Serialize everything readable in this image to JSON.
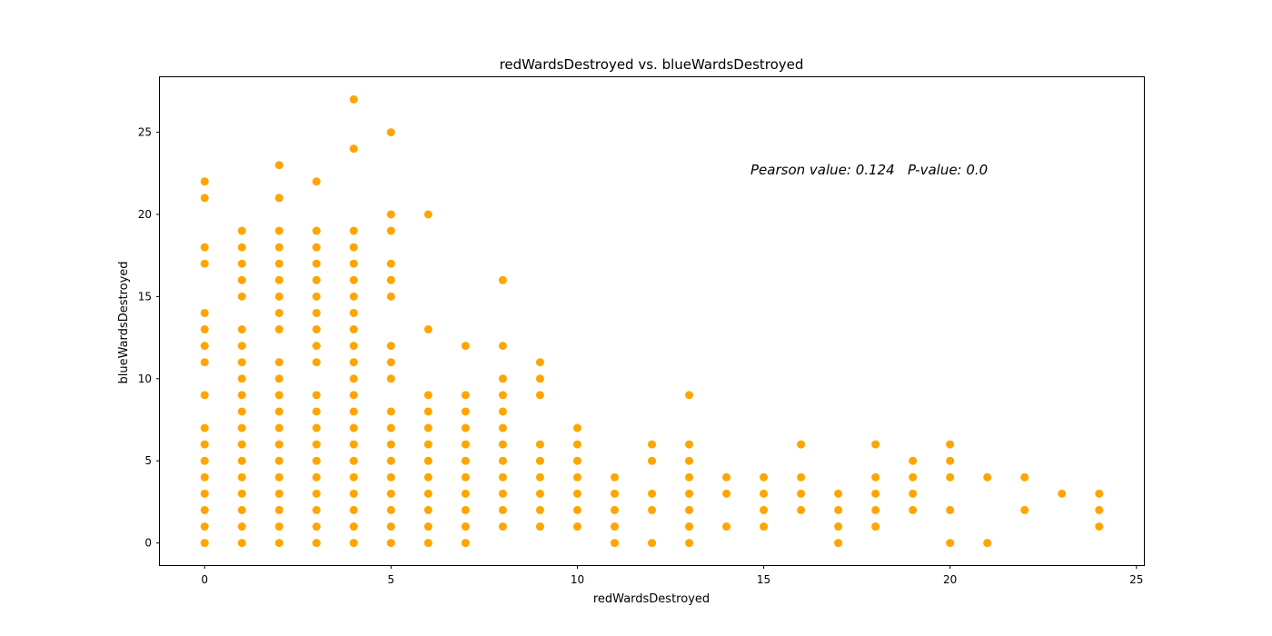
{
  "chart_data": {
    "type": "scatter",
    "title": "redWardsDestroyed vs. blueWardsDestroyed",
    "xlabel": "redWardsDestroyed",
    "ylabel": "blueWardsDestroyed",
    "xlim": [
      -1.2,
      25.2
    ],
    "ylim": [
      -1.35,
      28.35
    ],
    "xticks": [
      0,
      5,
      10,
      15,
      20,
      25
    ],
    "yticks": [
      0,
      5,
      10,
      15,
      20,
      25
    ],
    "grid": false,
    "annotation": "Pearson value: 0.124   P-value: 0.0",
    "marker_color": "#ffa500",
    "series": [
      {
        "points": [
          [
            0,
            0
          ],
          [
            0,
            1
          ],
          [
            0,
            2
          ],
          [
            0,
            3
          ],
          [
            0,
            4
          ],
          [
            0,
            5
          ],
          [
            0,
            6
          ],
          [
            0,
            7
          ],
          [
            0,
            9
          ],
          [
            0,
            11
          ],
          [
            0,
            12
          ],
          [
            0,
            13
          ],
          [
            0,
            14
          ],
          [
            0,
            17
          ],
          [
            0,
            18
          ],
          [
            0,
            21
          ],
          [
            0,
            22
          ],
          [
            1,
            0
          ],
          [
            1,
            1
          ],
          [
            1,
            2
          ],
          [
            1,
            3
          ],
          [
            1,
            4
          ],
          [
            1,
            5
          ],
          [
            1,
            6
          ],
          [
            1,
            7
          ],
          [
            1,
            8
          ],
          [
            1,
            9
          ],
          [
            1,
            10
          ],
          [
            1,
            11
          ],
          [
            1,
            12
          ],
          [
            1,
            13
          ],
          [
            1,
            15
          ],
          [
            1,
            16
          ],
          [
            1,
            17
          ],
          [
            1,
            18
          ],
          [
            1,
            19
          ],
          [
            2,
            0
          ],
          [
            2,
            1
          ],
          [
            2,
            2
          ],
          [
            2,
            3
          ],
          [
            2,
            4
          ],
          [
            2,
            5
          ],
          [
            2,
            6
          ],
          [
            2,
            7
          ],
          [
            2,
            8
          ],
          [
            2,
            9
          ],
          [
            2,
            10
          ],
          [
            2,
            11
          ],
          [
            2,
            13
          ],
          [
            2,
            14
          ],
          [
            2,
            15
          ],
          [
            2,
            16
          ],
          [
            2,
            17
          ],
          [
            2,
            18
          ],
          [
            2,
            19
          ],
          [
            2,
            21
          ],
          [
            2,
            23
          ],
          [
            3,
            0
          ],
          [
            3,
            1
          ],
          [
            3,
            2
          ],
          [
            3,
            3
          ],
          [
            3,
            4
          ],
          [
            3,
            5
          ],
          [
            3,
            6
          ],
          [
            3,
            7
          ],
          [
            3,
            8
          ],
          [
            3,
            9
          ],
          [
            3,
            11
          ],
          [
            3,
            12
          ],
          [
            3,
            13
          ],
          [
            3,
            14
          ],
          [
            3,
            15
          ],
          [
            3,
            16
          ],
          [
            3,
            17
          ],
          [
            3,
            18
          ],
          [
            3,
            19
          ],
          [
            3,
            22
          ],
          [
            4,
            0
          ],
          [
            4,
            1
          ],
          [
            4,
            2
          ],
          [
            4,
            3
          ],
          [
            4,
            4
          ],
          [
            4,
            5
          ],
          [
            4,
            6
          ],
          [
            4,
            7
          ],
          [
            4,
            8
          ],
          [
            4,
            9
          ],
          [
            4,
            10
          ],
          [
            4,
            11
          ],
          [
            4,
            12
          ],
          [
            4,
            13
          ],
          [
            4,
            14
          ],
          [
            4,
            15
          ],
          [
            4,
            16
          ],
          [
            4,
            17
          ],
          [
            4,
            18
          ],
          [
            4,
            19
          ],
          [
            4,
            24
          ],
          [
            4,
            27
          ],
          [
            5,
            0
          ],
          [
            5,
            1
          ],
          [
            5,
            2
          ],
          [
            5,
            3
          ],
          [
            5,
            4
          ],
          [
            5,
            5
          ],
          [
            5,
            6
          ],
          [
            5,
            7
          ],
          [
            5,
            8
          ],
          [
            5,
            10
          ],
          [
            5,
            11
          ],
          [
            5,
            12
          ],
          [
            5,
            15
          ],
          [
            5,
            16
          ],
          [
            5,
            17
          ],
          [
            5,
            19
          ],
          [
            5,
            20
          ],
          [
            5,
            25
          ],
          [
            6,
            0
          ],
          [
            6,
            1
          ],
          [
            6,
            2
          ],
          [
            6,
            3
          ],
          [
            6,
            4
          ],
          [
            6,
            5
          ],
          [
            6,
            6
          ],
          [
            6,
            7
          ],
          [
            6,
            8
          ],
          [
            6,
            9
          ],
          [
            6,
            13
          ],
          [
            6,
            20
          ],
          [
            7,
            0
          ],
          [
            7,
            1
          ],
          [
            7,
            2
          ],
          [
            7,
            3
          ],
          [
            7,
            4
          ],
          [
            7,
            5
          ],
          [
            7,
            6
          ],
          [
            7,
            7
          ],
          [
            7,
            8
          ],
          [
            7,
            9
          ],
          [
            7,
            12
          ],
          [
            8,
            1
          ],
          [
            8,
            2
          ],
          [
            8,
            3
          ],
          [
            8,
            4
          ],
          [
            8,
            5
          ],
          [
            8,
            6
          ],
          [
            8,
            7
          ],
          [
            8,
            8
          ],
          [
            8,
            9
          ],
          [
            8,
            10
          ],
          [
            8,
            12
          ],
          [
            8,
            16
          ],
          [
            9,
            1
          ],
          [
            9,
            2
          ],
          [
            9,
            3
          ],
          [
            9,
            4
          ],
          [
            9,
            5
          ],
          [
            9,
            6
          ],
          [
            9,
            9
          ],
          [
            9,
            10
          ],
          [
            9,
            11
          ],
          [
            10,
            1
          ],
          [
            10,
            2
          ],
          [
            10,
            3
          ],
          [
            10,
            4
          ],
          [
            10,
            5
          ],
          [
            10,
            6
          ],
          [
            10,
            7
          ],
          [
            11,
            0
          ],
          [
            11,
            1
          ],
          [
            11,
            2
          ],
          [
            11,
            3
          ],
          [
            11,
            4
          ],
          [
            12,
            0
          ],
          [
            12,
            2
          ],
          [
            12,
            3
          ],
          [
            12,
            5
          ],
          [
            12,
            6
          ],
          [
            13,
            0
          ],
          [
            13,
            1
          ],
          [
            13,
            2
          ],
          [
            13,
            3
          ],
          [
            13,
            4
          ],
          [
            13,
            5
          ],
          [
            13,
            6
          ],
          [
            13,
            9
          ],
          [
            14,
            1
          ],
          [
            14,
            3
          ],
          [
            14,
            4
          ],
          [
            15,
            1
          ],
          [
            15,
            2
          ],
          [
            15,
            3
          ],
          [
            15,
            4
          ],
          [
            16,
            2
          ],
          [
            16,
            3
          ],
          [
            16,
            4
          ],
          [
            16,
            6
          ],
          [
            17,
            0
          ],
          [
            17,
            1
          ],
          [
            17,
            2
          ],
          [
            17,
            3
          ],
          [
            18,
            1
          ],
          [
            18,
            2
          ],
          [
            18,
            3
          ],
          [
            18,
            4
          ],
          [
            18,
            6
          ],
          [
            19,
            2
          ],
          [
            19,
            3
          ],
          [
            19,
            4
          ],
          [
            19,
            5
          ],
          [
            20,
            0
          ],
          [
            20,
            2
          ],
          [
            20,
            4
          ],
          [
            20,
            5
          ],
          [
            20,
            6
          ],
          [
            21,
            0
          ],
          [
            21,
            4
          ],
          [
            22,
            2
          ],
          [
            22,
            4
          ],
          [
            23,
            3
          ],
          [
            24,
            1
          ],
          [
            24,
            2
          ],
          [
            24,
            3
          ]
        ]
      }
    ]
  }
}
